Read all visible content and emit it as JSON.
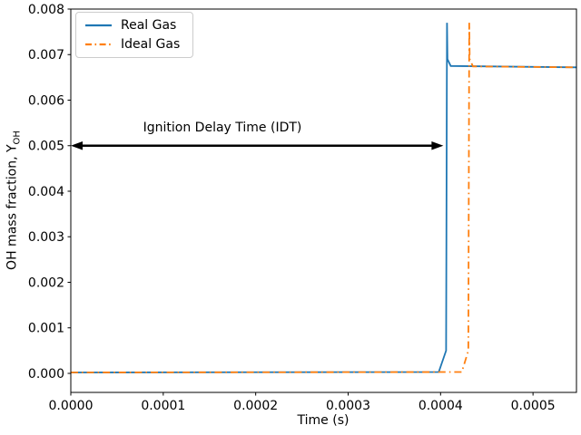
{
  "figure": {
    "xlabel": "Time (s)",
    "ylabel_prefix": "OH mass fraction, Y",
    "ylabel_sub": "OH",
    "annotation_text": "Ignition Delay Time (IDT)"
  },
  "chart_data": {
    "type": "line",
    "title": "",
    "xlabel": "Time (s)",
    "ylabel": "OH mass fraction, Y_OH",
    "xlim": [
      0.0,
      0.000547
    ],
    "ylim": [
      -0.000418,
      0.008
    ],
    "x_tick_values": [
      0.0,
      0.0001,
      0.0002,
      0.0003,
      0.0004,
      0.0005
    ],
    "x_tick_labels": [
      "0.0000",
      "0.0001",
      "0.0002",
      "0.0003",
      "0.0004",
      "0.0005"
    ],
    "y_tick_values": [
      0.0,
      0.001,
      0.002,
      0.003,
      0.004,
      0.005,
      0.006,
      0.007,
      0.008
    ],
    "y_tick_labels": [
      "0.000",
      "0.001",
      "0.002",
      "0.003",
      "0.004",
      "0.005",
      "0.006",
      "0.007",
      "0.008"
    ],
    "grid": false,
    "legend_position": "upper left",
    "axis_color": "#000000",
    "series": [
      {
        "name": "Real Gas",
        "color": "#1f77b4",
        "linestyle": "solid",
        "x": [
          0.0,
          0.000398,
          0.000406,
          0.000407,
          0.0004075,
          0.000411,
          0.000547
        ],
        "y": [
          2e-05,
          3e-05,
          0.0005,
          0.0077,
          0.0069,
          0.00675,
          0.00672
        ]
      },
      {
        "name": "Ideal Gas",
        "color": "#ff7f0e",
        "linestyle": "dashdot",
        "x": [
          0.0,
          0.000423,
          0.00043,
          0.000431,
          0.0004315,
          0.000435,
          0.000547
        ],
        "y": [
          2e-05,
          3e-05,
          0.0005,
          0.0077,
          0.0069,
          0.00674,
          0.00672
        ]
      }
    ],
    "annotation": {
      "text": "Ignition Delay Time (IDT)",
      "arrow_y": 0.005,
      "arrow_x_start": 0.0,
      "arrow_x_end": 0.000403,
      "arrow_color": "#000000"
    }
  }
}
